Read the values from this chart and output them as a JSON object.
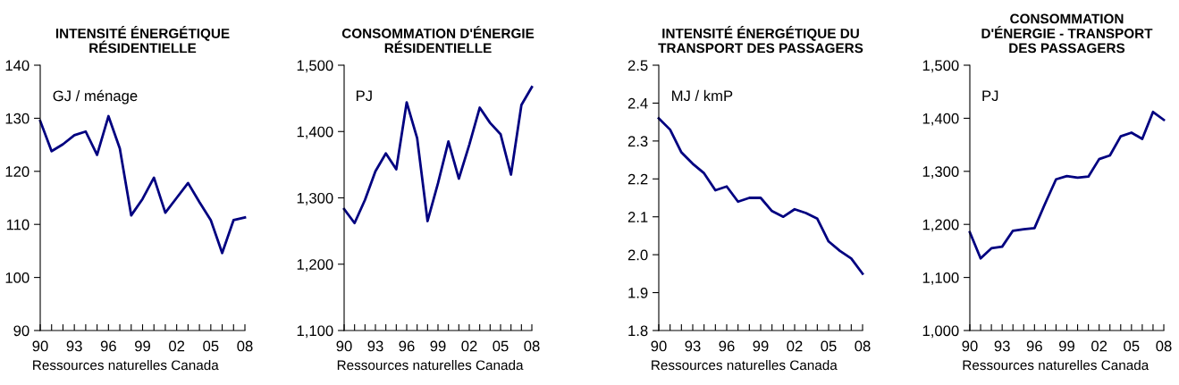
{
  "chart_data": [
    {
      "type": "line",
      "title": "INTENSITÉ ÉNERGÉTIQUE\nRÉSIDENTIELLE",
      "annotations": [
        "GJ / ménage",
        "Ressources naturelles Canada"
      ],
      "x": [
        1990,
        1991,
        1992,
        1993,
        1994,
        1995,
        1996,
        1997,
        1998,
        1999,
        2000,
        2001,
        2002,
        2003,
        2004,
        2005,
        2006,
        2007,
        2008
      ],
      "series": [
        {
          "color": "#000080",
          "values": [
            129.5,
            123.8,
            125.1,
            126.8,
            127.5,
            123.1,
            130.4,
            124.3,
            111.7,
            114.8,
            118.8,
            112.2,
            115.0,
            117.8,
            114.2,
            110.8,
            104.6,
            110.8,
            111.3
          ]
        }
      ],
      "xlim": [
        1990,
        2008
      ],
      "ylim": [
        90,
        140
      ],
      "yticks": [
        90,
        100,
        110,
        120,
        130,
        140
      ],
      "xticks": [
        {
          "value": 1990,
          "label": "90"
        },
        {
          "value": 1991,
          "label": null
        },
        {
          "value": 1992,
          "label": null
        },
        {
          "value": 1993,
          "label": "93"
        },
        {
          "value": 1994,
          "label": null
        },
        {
          "value": 1995,
          "label": null
        },
        {
          "value": 1996,
          "label": "96"
        },
        {
          "value": 1997,
          "label": null
        },
        {
          "value": 1998,
          "label": null
        },
        {
          "value": 1999,
          "label": "99"
        },
        {
          "value": 2000,
          "label": null
        },
        {
          "value": 2001,
          "label": null
        },
        {
          "value": 2002,
          "label": "02"
        },
        {
          "value": 2003,
          "label": null
        },
        {
          "value": 2004,
          "label": null
        },
        {
          "value": 2005,
          "label": "05"
        },
        {
          "value": 2006,
          "label": null
        },
        {
          "value": 2007,
          "label": null
        },
        {
          "value": 2008,
          "label": "08"
        }
      ],
      "grid": false,
      "legend": false,
      "marker": "none",
      "line_style": "solid"
    },
    {
      "type": "line",
      "title": "CONSOMMATION D'ÉNERGIE\nRÉSIDENTIELLE",
      "annotations": [
        "PJ",
        "Ressources naturelles Canada"
      ],
      "x": [
        1990,
        1991,
        1992,
        1993,
        1994,
        1995,
        1996,
        1997,
        1998,
        1999,
        2000,
        2001,
        2002,
        2003,
        2004,
        2005,
        2006,
        2007,
        2008
      ],
      "series": [
        {
          "color": "#000080",
          "values": [
            1283,
            1262,
            1297,
            1340,
            1367,
            1343,
            1444,
            1390,
            1265,
            1322,
            1385,
            1329,
            1380,
            1436,
            1413,
            1396,
            1335,
            1440,
            1467
          ]
        }
      ],
      "xlim": [
        1990,
        2008
      ],
      "ylim": [
        1100,
        1500
      ],
      "yticks": [
        {
          "value": 1100,
          "label": "1,100"
        },
        {
          "value": 1200,
          "label": "1,200"
        },
        {
          "value": 1300,
          "label": "1,300"
        },
        {
          "value": 1400,
          "label": "1,400"
        },
        {
          "value": 1500,
          "label": "1,500"
        }
      ],
      "xticks": [
        {
          "value": 1990,
          "label": "90"
        },
        {
          "value": 1991,
          "label": null
        },
        {
          "value": 1992,
          "label": null
        },
        {
          "value": 1993,
          "label": "93"
        },
        {
          "value": 1994,
          "label": null
        },
        {
          "value": 1995,
          "label": null
        },
        {
          "value": 1996,
          "label": "96"
        },
        {
          "value": 1997,
          "label": null
        },
        {
          "value": 1998,
          "label": null
        },
        {
          "value": 1999,
          "label": "99"
        },
        {
          "value": 2000,
          "label": null
        },
        {
          "value": 2001,
          "label": null
        },
        {
          "value": 2002,
          "label": "02"
        },
        {
          "value": 2003,
          "label": null
        },
        {
          "value": 2004,
          "label": null
        },
        {
          "value": 2005,
          "label": "05"
        },
        {
          "value": 2006,
          "label": null
        },
        {
          "value": 2007,
          "label": null
        },
        {
          "value": 2008,
          "label": "08"
        }
      ],
      "grid": false,
      "legend": false,
      "marker": "none",
      "line_style": "solid"
    },
    {
      "type": "line",
      "title": "INTENSITÉ ÉNERGÉTIQUE DU\nTRANSPORT DES PASSAGERS",
      "annotations": [
        "MJ / kmP",
        "Ressources naturelles Canada"
      ],
      "x": [
        1990,
        1991,
        1992,
        1993,
        1994,
        1995,
        1996,
        1997,
        1998,
        1999,
        2000,
        2001,
        2002,
        2003,
        2004,
        2005,
        2006,
        2007,
        2008
      ],
      "series": [
        {
          "color": "#000080",
          "values": [
            2.36,
            2.33,
            2.27,
            2.24,
            2.215,
            2.17,
            2.18,
            2.14,
            2.15,
            2.15,
            2.115,
            2.1,
            2.12,
            2.11,
            2.095,
            2.035,
            2.01,
            1.99,
            1.95
          ]
        }
      ],
      "xlim": [
        1990,
        2008
      ],
      "ylim": [
        1.8,
        2.5
      ],
      "yticks": [
        {
          "value": 1.8,
          "label": "1.8"
        },
        {
          "value": 1.9,
          "label": "1.9"
        },
        {
          "value": 2.0,
          "label": "2.0"
        },
        {
          "value": 2.1,
          "label": "2.1"
        },
        {
          "value": 2.2,
          "label": "2.2"
        },
        {
          "value": 2.3,
          "label": "2.3"
        },
        {
          "value": 2.4,
          "label": "2.4"
        },
        {
          "value": 2.5,
          "label": "2.5"
        }
      ],
      "xticks": [
        {
          "value": 1990,
          "label": "90"
        },
        {
          "value": 1991,
          "label": null
        },
        {
          "value": 1992,
          "label": null
        },
        {
          "value": 1993,
          "label": "93"
        },
        {
          "value": 1994,
          "label": null
        },
        {
          "value": 1995,
          "label": null
        },
        {
          "value": 1996,
          "label": "96"
        },
        {
          "value": 1997,
          "label": null
        },
        {
          "value": 1998,
          "label": null
        },
        {
          "value": 1999,
          "label": "99"
        },
        {
          "value": 2000,
          "label": null
        },
        {
          "value": 2001,
          "label": null
        },
        {
          "value": 2002,
          "label": "02"
        },
        {
          "value": 2003,
          "label": null
        },
        {
          "value": 2004,
          "label": null
        },
        {
          "value": 2005,
          "label": "05"
        },
        {
          "value": 2006,
          "label": null
        },
        {
          "value": 2007,
          "label": null
        },
        {
          "value": 2008,
          "label": "08"
        }
      ],
      "grid": false,
      "legend": false,
      "marker": "none",
      "line_style": "solid"
    },
    {
      "type": "line",
      "title": "CONSOMMATION\nD'ÉNERGIE - TRANSPORT\nDES PASSAGERS",
      "annotations": [
        "PJ",
        "Ressources naturelles Canada"
      ],
      "x": [
        1990,
        1991,
        1992,
        1993,
        1994,
        1995,
        1996,
        1997,
        1998,
        1999,
        2000,
        2001,
        2002,
        2003,
        2004,
        2005,
        2006,
        2007,
        2008
      ],
      "series": [
        {
          "color": "#000080",
          "values": [
            1185,
            1136,
            1155,
            1158,
            1188,
            1191,
            1193,
            1240,
            1285,
            1291,
            1288,
            1290,
            1323,
            1330,
            1366,
            1373,
            1361,
            1412,
            1397
          ]
        }
      ],
      "xlim": [
        1990,
        2008
      ],
      "ylim": [
        1000,
        1500
      ],
      "yticks": [
        {
          "value": 1000,
          "label": "1,000"
        },
        {
          "value": 1100,
          "label": "1,100"
        },
        {
          "value": 1200,
          "label": "1,200"
        },
        {
          "value": 1300,
          "label": "1,300"
        },
        {
          "value": 1400,
          "label": "1,400"
        },
        {
          "value": 1500,
          "label": "1,500"
        }
      ],
      "xticks": [
        {
          "value": 1990,
          "label": "90"
        },
        {
          "value": 1991,
          "label": null
        },
        {
          "value": 1992,
          "label": null
        },
        {
          "value": 1993,
          "label": "93"
        },
        {
          "value": 1994,
          "label": null
        },
        {
          "value": 1995,
          "label": null
        },
        {
          "value": 1996,
          "label": "96"
        },
        {
          "value": 1997,
          "label": null
        },
        {
          "value": 1998,
          "label": null
        },
        {
          "value": 1999,
          "label": "99"
        },
        {
          "value": 2000,
          "label": null
        },
        {
          "value": 2001,
          "label": null
        },
        {
          "value": 2002,
          "label": "02"
        },
        {
          "value": 2003,
          "label": null
        },
        {
          "value": 2004,
          "label": null
        },
        {
          "value": 2005,
          "label": "05"
        },
        {
          "value": 2006,
          "label": null
        },
        {
          "value": 2007,
          "label": null
        },
        {
          "value": 2008,
          "label": "08"
        }
      ],
      "grid": false,
      "legend": false,
      "marker": "none",
      "line_style": "solid"
    }
  ]
}
